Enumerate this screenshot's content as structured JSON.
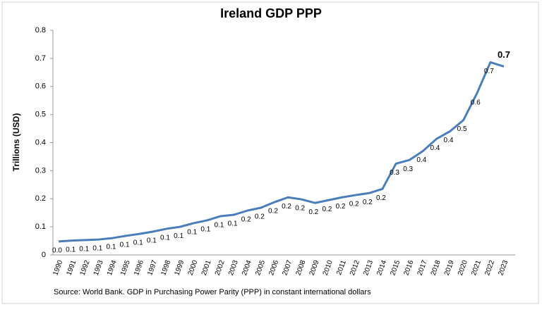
{
  "chart_data": {
    "type": "line",
    "title": "Ireland GDP PPP",
    "y_label": "Trillions (USD)",
    "source": "Source: World Bank.  GDP  in  Purchasing Power Parity (PPP)  in constant international dollars",
    "categories": [
      "1990",
      "1991",
      "1992",
      "1993",
      "1994",
      "1995",
      "1996",
      "1997",
      "1998",
      "1999",
      "2000",
      "2001",
      "2002",
      "2003",
      "2004",
      "2005",
      "2006",
      "2007",
      "2008",
      "2009",
      "2010",
      "2011",
      "2012",
      "2013",
      "2014",
      "2015",
      "2016",
      "2017",
      "2018",
      "2019",
      "2020",
      "2021",
      "2022",
      "2023"
    ],
    "series": [
      {
        "name": "Ireland GDP PPP",
        "color": "#4a7ebb",
        "values": [
          0.048,
          0.051,
          0.053,
          0.055,
          0.06,
          0.068,
          0.075,
          0.083,
          0.093,
          0.1,
          0.113,
          0.123,
          0.138,
          0.143,
          0.158,
          0.168,
          0.188,
          0.205,
          0.198,
          0.185,
          0.195,
          0.205,
          0.213,
          0.22,
          0.235,
          0.325,
          0.338,
          0.37,
          0.413,
          0.44,
          0.48,
          0.575,
          0.686,
          0.671
        ],
        "value_labels": [
          "0.0",
          "0.1",
          "0.1",
          "0.1",
          "0.1",
          "0.1",
          "0.1",
          "0.1",
          "0.1",
          "0.1",
          "0.1",
          "0.1",
          "0.1",
          "0.1",
          "0.2",
          "0.2",
          "0.2",
          "0.2",
          "0.2",
          "0.2",
          "0.2",
          "0.2",
          "0.2",
          "0.2",
          "0.2",
          "0.3",
          "0.3",
          "0.4",
          "0.4",
          "0.4",
          "0.5",
          "0.6",
          "0.7",
          "0.7"
        ]
      }
    ],
    "ylim": [
      0,
      0.8
    ],
    "yticks": [
      0,
      0.1,
      0.2,
      0.3,
      0.4,
      0.5,
      0.6,
      0.7,
      0.8
    ],
    "grid": false
  }
}
